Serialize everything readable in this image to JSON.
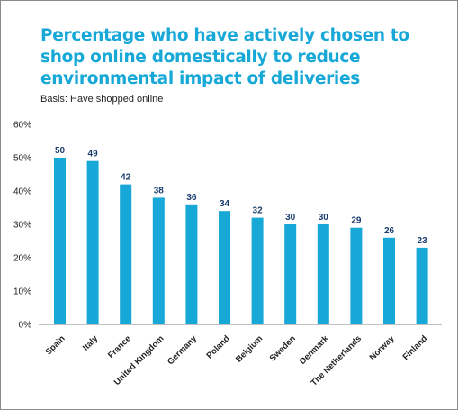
{
  "header": {
    "title": "Percentage who have actively chosen to shop online domestically to reduce environmental impact of deliveries",
    "subtitle": "Basis: Have shopped online"
  },
  "chart_data": {
    "type": "bar",
    "title": "Percentage who have actively chosen to shop online domestically to reduce environmental impact of deliveries",
    "subtitle": "Basis: Have shopped online",
    "categories": [
      "Spain",
      "Italy",
      "France",
      "United Kingdom",
      "Germany",
      "Poland",
      "Belgium",
      "Sweden",
      "Denmark",
      "The Netherlands",
      "Norway",
      "Finland"
    ],
    "values": [
      50,
      49,
      42,
      38,
      36,
      34,
      32,
      30,
      30,
      29,
      26,
      23
    ],
    "data_labels": [
      "50",
      "49",
      "42",
      "38",
      "36",
      "34",
      "32",
      "30",
      "30",
      "29",
      "26",
      "23"
    ],
    "y_ticks": [
      "0%",
      "10%",
      "20%",
      "30%",
      "40%",
      "50%",
      "60%"
    ],
    "ylim": [
      0,
      60
    ],
    "grid": false,
    "bar_color": "#17a8d8",
    "label_color": "#1a3d6e"
  }
}
